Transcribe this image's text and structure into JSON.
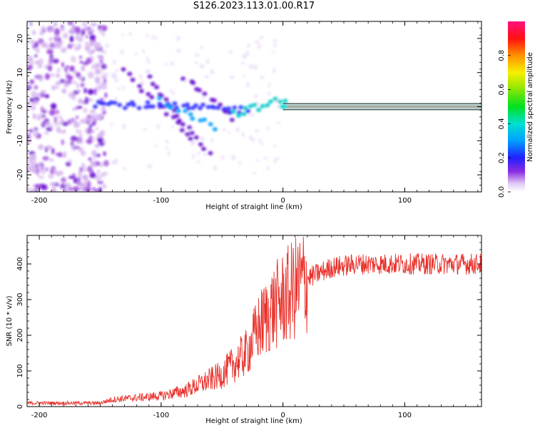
{
  "title": "S126.2023.113.01.00.R17",
  "chart_data": [
    {
      "type": "heatmap",
      "xlabel": "Height of straight line (km)",
      "ylabel": "Frequency (Hz)",
      "xlim": [
        -210,
        163
      ],
      "ylim": [
        -25,
        25
      ],
      "xticks": [
        -200,
        -100,
        0,
        100
      ],
      "yticks": [
        -20,
        -10,
        0,
        10,
        20
      ],
      "colorbar": {
        "label": "Normalized spectral amplitude",
        "range": [
          0,
          1
        ],
        "ticks": [
          0.0,
          0.2,
          0.4,
          0.6,
          0.8
        ]
      },
      "main_line": {
        "start_height_km": 0,
        "frequency_hz": 0
      },
      "scatter_region": {
        "x": [
          -210,
          -150
        ],
        "y": [
          -25,
          25
        ]
      }
    },
    {
      "type": "line",
      "xlabel": "Height of straight line (km)",
      "ylabel": "SNR (10 * v/v)",
      "xlim": [
        -210,
        163
      ],
      "ylim": [
        0,
        480
      ],
      "xticks": [
        -200,
        -100,
        0,
        100
      ],
      "yticks": [
        0,
        100,
        200,
        300,
        400
      ],
      "color": "#e8322c",
      "trend": {
        "x": [
          -210,
          -150,
          -140,
          -100,
          -80,
          -50,
          -30,
          -20,
          -10,
          0,
          10,
          20,
          30,
          40,
          60,
          100,
          163
        ],
        "y": [
          10,
          10,
          20,
          30,
          45,
          90,
          150,
          220,
          270,
          300,
          330,
          360,
          375,
          390,
          400,
          400,
          400
        ]
      }
    }
  ]
}
